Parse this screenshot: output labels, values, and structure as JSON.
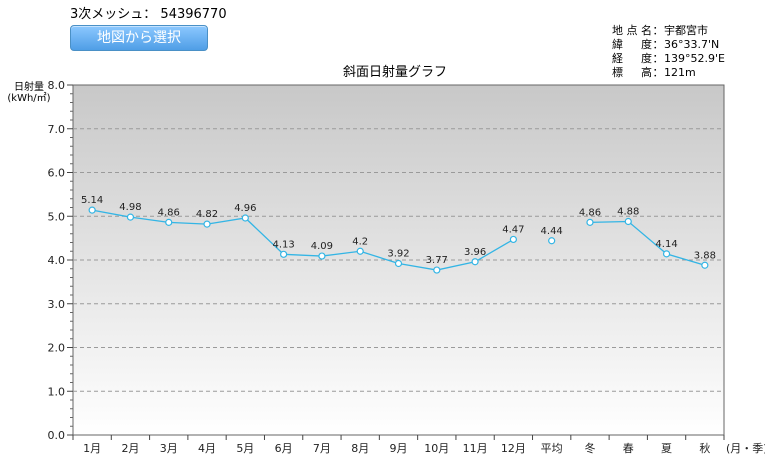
{
  "header": {
    "mesh_label": "3次メッシュ：",
    "mesh_code": "54396770",
    "map_button_label": "地図から選択"
  },
  "site": {
    "name_label": "地点名",
    "name_value": "宇都宮市",
    "lat_label": "緯　度",
    "lat_value": "36°33.7'N",
    "lon_label": "経　度",
    "lon_value": "139°52.9'E",
    "alt_label": "標　高",
    "alt_value": "121m"
  },
  "chart_data": {
    "type": "line",
    "title": "斜面日射量グラフ",
    "ylabel": "日射量\n(kWh/㎡)",
    "xlabel": "(月・季)",
    "ylim": [
      0,
      8
    ],
    "yticks": [
      "0.0",
      "1.0",
      "2.0",
      "3.0",
      "4.0",
      "5.0",
      "6.0",
      "7.0",
      "8.0"
    ],
    "grid": true,
    "categories": [
      "1月",
      "2月",
      "3月",
      "4月",
      "5月",
      "6月",
      "7月",
      "8月",
      "9月",
      "10月",
      "11月",
      "12月",
      "平均",
      "冬",
      "春",
      "夏",
      "秋"
    ],
    "values": [
      5.14,
      4.98,
      4.86,
      4.82,
      4.96,
      4.13,
      4.09,
      4.2,
      3.92,
      3.77,
      3.96,
      4.47,
      4.44,
      4.86,
      4.88,
      4.14,
      3.88
    ],
    "value_labels": [
      "5.14",
      "4.98",
      "4.86",
      "4.82",
      "4.96",
      "4.13",
      "4.09",
      "4.2",
      "3.92",
      "3.77",
      "3.96",
      "4.47",
      "4.44",
      "4.86",
      "4.88",
      "4.14",
      "3.88"
    ],
    "line_segments": [
      [
        0,
        11
      ],
      [
        13,
        16
      ]
    ],
    "line_color": "#33b5e5"
  }
}
